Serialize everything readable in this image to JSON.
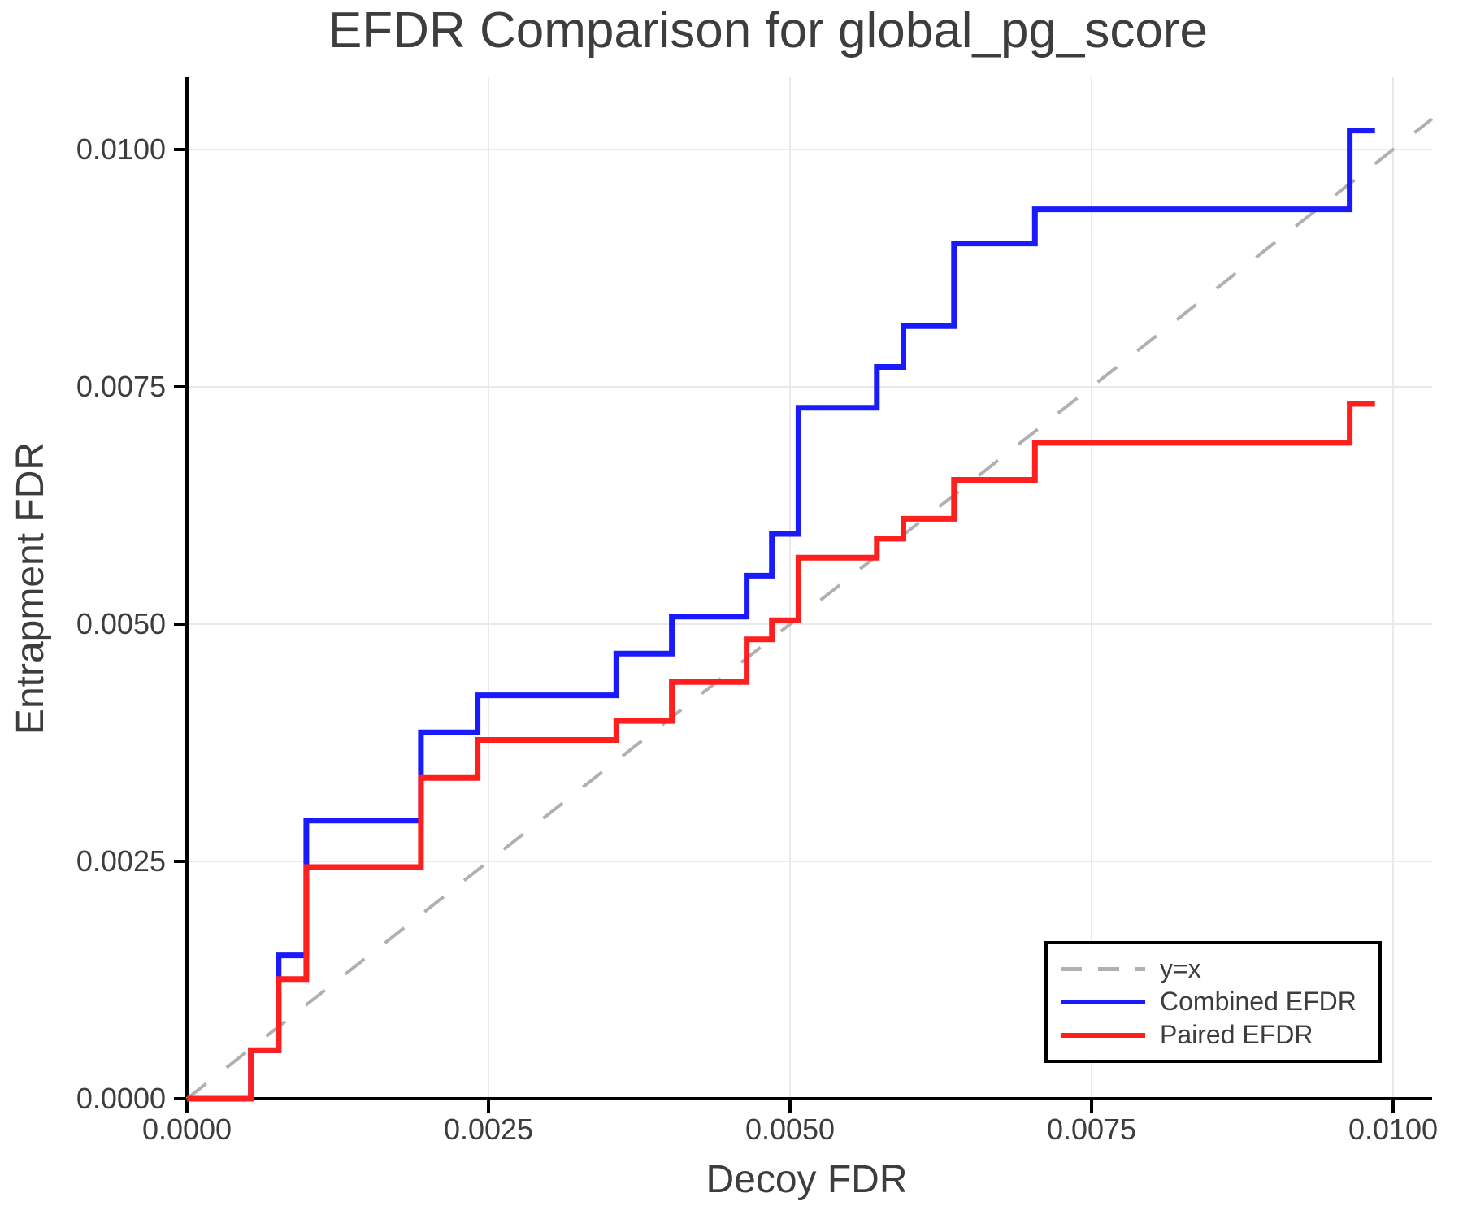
{
  "title": "EFDR Comparison for global_pg_score",
  "x_axis": {
    "label": "Decoy FDR",
    "tick_labels": [
      "0.0000",
      "0.0025",
      "0.0050",
      "0.0075",
      "0.0100"
    ]
  },
  "y_axis": {
    "label": "Entrapment FDR",
    "tick_labels": [
      "0.0000",
      "0.0025",
      "0.0050",
      "0.0075",
      "0.0100"
    ]
  },
  "legend": {
    "items": [
      {
        "label": "y=x"
      },
      {
        "label": "Combined EFDR"
      },
      {
        "label": "Paired EFDR"
      }
    ]
  },
  "colors": {
    "combined": "#1a1aff",
    "paired": "#ff1f1f",
    "identity": "#b0b0b0",
    "grid": "#e9e9e9",
    "text": "#3d3d3d",
    "spine": "#000000"
  },
  "chart_data": {
    "type": "line",
    "title": "EFDR Comparison for global_pg_score",
    "xlabel": "Decoy FDR",
    "ylabel": "Entrapment FDR",
    "xlim": [
      0,
      0.010323
    ],
    "ylim": [
      0,
      0.010762
    ],
    "x_ticks": [
      0,
      0.0025,
      0.005,
      0.0075,
      0.01
    ],
    "y_ticks": [
      0,
      0.0025,
      0.005,
      0.0075,
      0.01
    ],
    "grid": true,
    "legend_position": "lower right",
    "series": [
      {
        "name": "y=x",
        "style": "dashed",
        "color": "#b0b0b0",
        "points": [
          [
            0,
            0
          ],
          [
            0.010323,
            0.010323
          ]
        ]
      },
      {
        "name": "Combined EFDR",
        "style": "step",
        "color": "#1a1aff",
        "points": [
          [
            0,
            0
          ],
          [
            0.00053,
            0.00051
          ],
          [
            0.00076,
            0.00151
          ],
          [
            0.00099,
            0.00293
          ],
          [
            0.00194,
            0.00386
          ],
          [
            0.00241,
            0.00425
          ],
          [
            0.00356,
            0.00469
          ],
          [
            0.00402,
            0.00508
          ],
          [
            0.00464,
            0.00551
          ],
          [
            0.00485,
            0.00595
          ],
          [
            0.00507,
            0.00728
          ],
          [
            0.00572,
            0.00771
          ],
          [
            0.00594,
            0.00814
          ],
          [
            0.00636,
            0.00901
          ],
          [
            0.00703,
            0.00937
          ],
          [
            0.00964,
            0.0102
          ],
          [
            0.00985,
            0.0102
          ]
        ]
      },
      {
        "name": "Paired EFDR",
        "style": "step",
        "color": "#ff1f1f",
        "points": [
          [
            0,
            0
          ],
          [
            0.00053,
            0.00051
          ],
          [
            0.00076,
            0.00126
          ],
          [
            0.00099,
            0.00244
          ],
          [
            0.00194,
            0.00338
          ],
          [
            0.00241,
            0.00378
          ],
          [
            0.00356,
            0.00398
          ],
          [
            0.00402,
            0.00439
          ],
          [
            0.00464,
            0.00484
          ],
          [
            0.00485,
            0.00504
          ],
          [
            0.00507,
            0.0057
          ],
          [
            0.00572,
            0.0059
          ],
          [
            0.00594,
            0.00611
          ],
          [
            0.00636,
            0.00652
          ],
          [
            0.00703,
            0.00691
          ],
          [
            0.00964,
            0.00732
          ],
          [
            0.00985,
            0.00732
          ]
        ]
      }
    ]
  }
}
